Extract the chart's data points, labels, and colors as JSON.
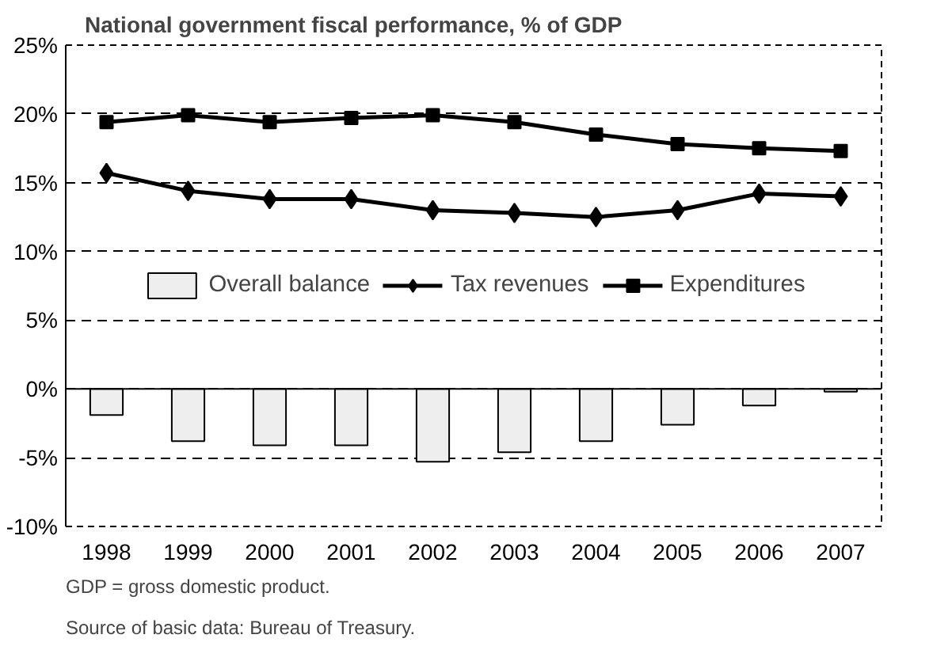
{
  "chart_data": {
    "type": "bar",
    "title": "National government fiscal performance, % of GDP",
    "categories": [
      "1998",
      "1999",
      "2000",
      "2001",
      "2002",
      "2003",
      "2004",
      "2005",
      "2006",
      "2007"
    ],
    "series": [
      {
        "name": "Overall balance",
        "color": "#eeeeee",
        "values": [
          -1.9,
          -3.8,
          -4.1,
          -4.1,
          -5.3,
          -4.6,
          -3.8,
          -2.6,
          -1.2,
          -0.2
        ]
      },
      {
        "name": "Tax revenues",
        "type": "line",
        "marker": "diamond",
        "color": "#000000",
        "values": [
          15.7,
          14.4,
          13.8,
          13.8,
          13.0,
          12.8,
          12.5,
          13.0,
          14.2,
          14.0
        ]
      },
      {
        "name": "Expenditures",
        "type": "line",
        "marker": "square",
        "color": "#000000",
        "values": [
          19.4,
          19.9,
          19.4,
          19.7,
          19.9,
          19.4,
          18.5,
          17.8,
          17.5,
          17.3
        ]
      }
    ],
    "ylim": [
      -10,
      25
    ],
    "yticks": [
      {
        "value": -10,
        "label": "-10%"
      },
      {
        "value": -5,
        "label": "-5%"
      },
      {
        "value": 0,
        "label": "0%"
      },
      {
        "value": 5,
        "label": "5%"
      },
      {
        "value": 10,
        "label": "10%"
      },
      {
        "value": 15,
        "label": "15%"
      },
      {
        "value": 20,
        "label": "20%"
      },
      {
        "value": 25,
        "label": "25%"
      }
    ],
    "grid": "y",
    "legend": "center",
    "annotations": [
      "GDP = gross domestic product.",
      "Source of basic data: Bureau of Treasury."
    ]
  }
}
